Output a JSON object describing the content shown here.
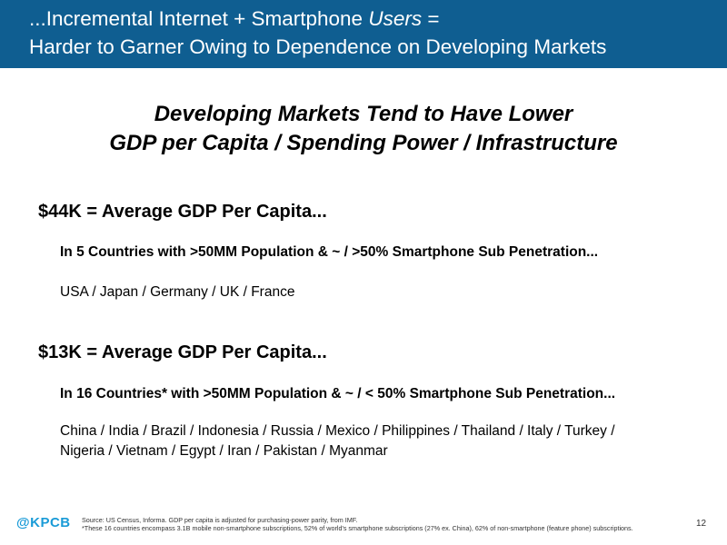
{
  "header": {
    "line1_before": "...Incremental Internet + Smartphone ",
    "line1_italic": "Users",
    "line1_after": " =",
    "line2": "Harder to Garner Owing to Dependence on Developing Markets"
  },
  "subtitle": {
    "line1": "Developing Markets Tend to Have Lower",
    "line2": "GDP per Capita / Spending Power / Infrastructure"
  },
  "section1": {
    "headline": "$44K = Average GDP Per Capita...",
    "criteria": "In 5 Countries with >50MM Population & ~ / >50% Smartphone Sub Penetration...",
    "countries": "USA / Japan / Germany / UK / France"
  },
  "section2": {
    "headline": "$13K = Average GDP Per Capita...",
    "criteria": "In 16 Countries* with >50MM Population & ~ / < 50% Smartphone Sub Penetration...",
    "countries_line1": "China / India / Brazil / Indonesia / Russia / Mexico / Philippines / Thailand / Italy / Turkey /",
    "countries_line2": "Nigeria / Vietnam / Egypt / Iran / Pakistan / Myanmar"
  },
  "footer": {
    "logo": "@KPCB",
    "source": "Source: US Census, Informa. GDP per capita is adjusted for purchasing-power parity, from IMF.",
    "note": "*These 16 countries encompass 3.1B mobile non-smartphone subscriptions, 52% of world's smartphone subscriptions (27% ex. China), 62% of non-smartphone (feature phone) subscriptions.",
    "page_number": "12"
  }
}
